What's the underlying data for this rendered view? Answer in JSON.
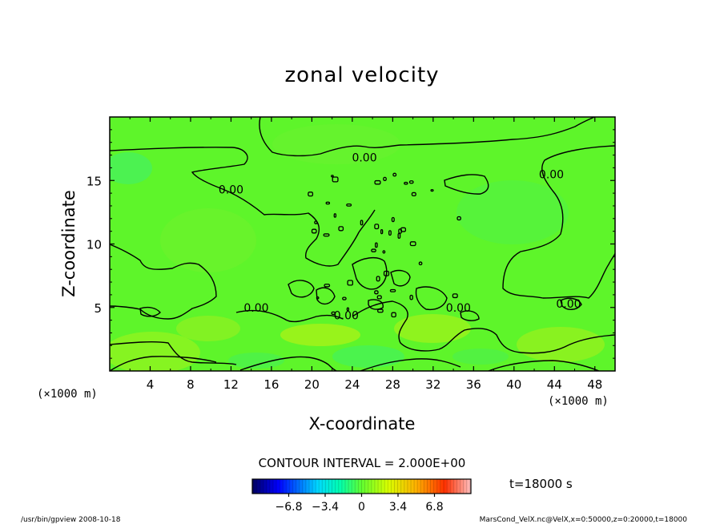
{
  "chart_data": {
    "type": "heatmap",
    "title": "zonal velocity",
    "xlabel": "X-coordinate",
    "ylabel": "Z-coordinate",
    "x_unit_left": "(×1000 m)",
    "x_unit_right": "(×1000 m)",
    "xlim": [
      0,
      50
    ],
    "ylim": [
      0,
      20
    ],
    "x_ticks": [
      4,
      8,
      12,
      16,
      20,
      24,
      28,
      32,
      36,
      40,
      44,
      48
    ],
    "y_ticks": [
      5,
      10,
      15
    ],
    "contour_interval_text": "CONTOUR INTERVAL = 2.000E+00",
    "time_text": "t=18000 s",
    "colorbar": {
      "range": [
        -10.2,
        10.2
      ],
      "tick_values": [
        -6.8,
        -3.4,
        0,
        3.4,
        6.8
      ],
      "tick_labels": [
        "−6.8",
        "−3.4",
        "0",
        "3.4",
        "6.8"
      ]
    },
    "contour_labels": [
      {
        "text": "0.00",
        "x": 25.2,
        "z": 16.8
      },
      {
        "text": "0.00",
        "x": 43.7,
        "z": 15.5
      },
      {
        "text": "0.00",
        "x": 12.0,
        "z": 14.3
      },
      {
        "text": "0.00",
        "x": 14.5,
        "z": 5.0
      },
      {
        "text": "0.00",
        "x": 23.4,
        "z": 4.4
      },
      {
        "text": "0.00",
        "x": 34.5,
        "z": 5.0
      },
      {
        "text": "0.00",
        "x": 45.4,
        "z": 5.3
      }
    ]
  },
  "footer": {
    "left": "/usr/bin/gpview   2008-10-18",
    "right": "MarsCond_VelX.nc@VelX,x=0:50000,z=0:20000,t=18000"
  }
}
